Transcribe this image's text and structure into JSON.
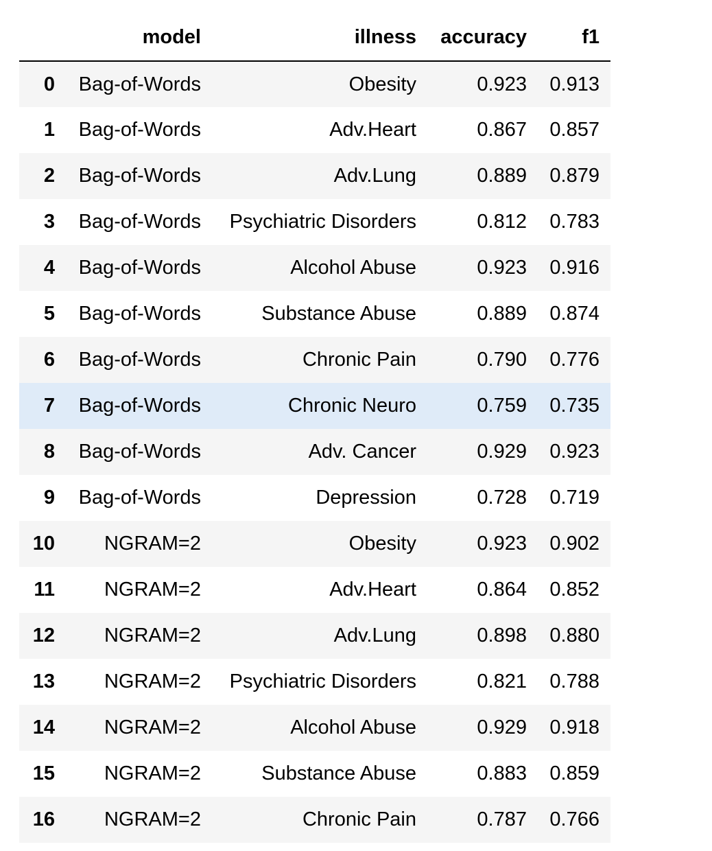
{
  "table": {
    "columns": [
      "model",
      "illness",
      "accuracy",
      "f1"
    ],
    "highlighted_row": 7,
    "colors": {
      "row_odd": "#f5f5f5",
      "row_even": "#ffffff",
      "row_hover": "#dfebf8",
      "header_rule": "#000000"
    },
    "rows": [
      {
        "index": "0",
        "model": "Bag-of-Words",
        "illness": "Obesity",
        "accuracy": "0.923",
        "f1": "0.913"
      },
      {
        "index": "1",
        "model": "Bag-of-Words",
        "illness": "Adv.Heart",
        "accuracy": "0.867",
        "f1": "0.857"
      },
      {
        "index": "2",
        "model": "Bag-of-Words",
        "illness": "Adv.Lung",
        "accuracy": "0.889",
        "f1": "0.879"
      },
      {
        "index": "3",
        "model": "Bag-of-Words",
        "illness": "Psychiatric Disorders",
        "accuracy": "0.812",
        "f1": "0.783"
      },
      {
        "index": "4",
        "model": "Bag-of-Words",
        "illness": "Alcohol Abuse",
        "accuracy": "0.923",
        "f1": "0.916"
      },
      {
        "index": "5",
        "model": "Bag-of-Words",
        "illness": "Substance Abuse",
        "accuracy": "0.889",
        "f1": "0.874"
      },
      {
        "index": "6",
        "model": "Bag-of-Words",
        "illness": "Chronic Pain",
        "accuracy": "0.790",
        "f1": "0.776"
      },
      {
        "index": "7",
        "model": "Bag-of-Words",
        "illness": "Chronic Neuro",
        "accuracy": "0.759",
        "f1": "0.735"
      },
      {
        "index": "8",
        "model": "Bag-of-Words",
        "illness": "Adv. Cancer",
        "accuracy": "0.929",
        "f1": "0.923"
      },
      {
        "index": "9",
        "model": "Bag-of-Words",
        "illness": "Depression",
        "accuracy": "0.728",
        "f1": "0.719"
      },
      {
        "index": "10",
        "model": "NGRAM=2",
        "illness": "Obesity",
        "accuracy": "0.923",
        "f1": "0.902"
      },
      {
        "index": "11",
        "model": "NGRAM=2",
        "illness": "Adv.Heart",
        "accuracy": "0.864",
        "f1": "0.852"
      },
      {
        "index": "12",
        "model": "NGRAM=2",
        "illness": "Adv.Lung",
        "accuracy": "0.898",
        "f1": "0.880"
      },
      {
        "index": "13",
        "model": "NGRAM=2",
        "illness": "Psychiatric Disorders",
        "accuracy": "0.821",
        "f1": "0.788"
      },
      {
        "index": "14",
        "model": "NGRAM=2",
        "illness": "Alcohol Abuse",
        "accuracy": "0.929",
        "f1": "0.918"
      },
      {
        "index": "15",
        "model": "NGRAM=2",
        "illness": "Substance Abuse",
        "accuracy": "0.883",
        "f1": "0.859"
      },
      {
        "index": "16",
        "model": "NGRAM=2",
        "illness": "Chronic Pain",
        "accuracy": "0.787",
        "f1": "0.766"
      }
    ]
  }
}
